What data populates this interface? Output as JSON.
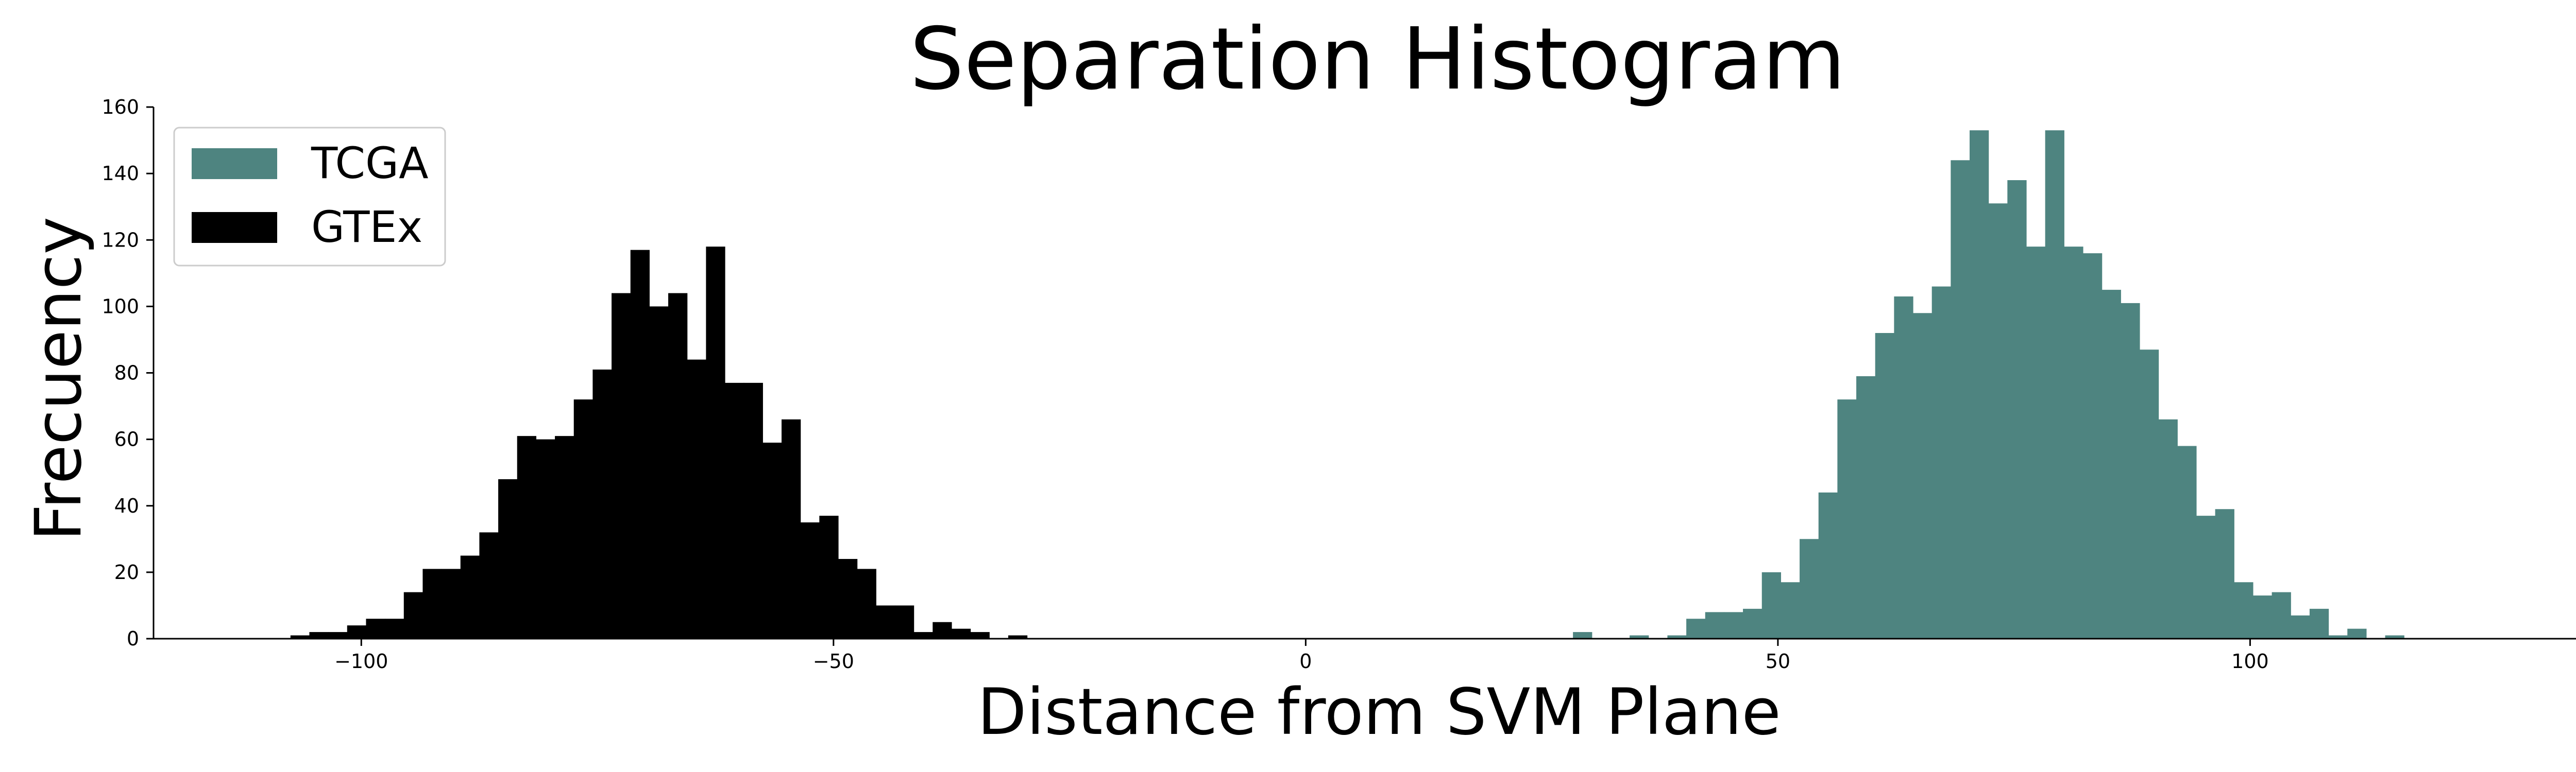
{
  "chart_data": {
    "type": "bar",
    "title": "Separation Histogram",
    "xlabel": "Distance from SVM Plane",
    "ylabel": "Frecuency",
    "xlim": [
      -122,
      138
    ],
    "ylim": [
      0,
      160
    ],
    "xticks": [
      -100,
      -50,
      0,
      50,
      100
    ],
    "xtick_labels": [
      "−100",
      "−50",
      "0",
      "50",
      "100"
    ],
    "yticks": [
      0,
      20,
      40,
      60,
      80,
      100,
      120,
      140,
      160
    ],
    "ytick_labels": [
      "0",
      "20",
      "40",
      "60",
      "80",
      "100",
      "120",
      "140",
      "160"
    ],
    "grid": false,
    "legend_position": "top-left",
    "series": [
      {
        "name": "TCGA",
        "color": "#4e8480",
        "bin_start": 28.3,
        "bin_width": 2.0,
        "values": [
          2,
          0,
          0,
          1,
          0,
          1,
          6,
          8,
          8,
          9,
          20,
          17,
          30,
          44,
          72,
          79,
          92,
          103,
          98,
          106,
          144,
          153,
          131,
          138,
          118,
          153,
          118,
          116,
          105,
          101,
          87,
          66,
          58,
          37,
          39,
          17,
          13,
          14,
          7,
          9,
          1,
          3,
          0,
          1
        ]
      },
      {
        "name": "GTEx",
        "color": "#000000",
        "bin_start": -107.5,
        "bin_width": 2.0,
        "values": [
          1,
          2,
          2,
          4,
          6,
          6,
          14,
          21,
          21,
          25,
          32,
          48,
          61,
          60,
          61,
          72,
          81,
          104,
          117,
          100,
          104,
          84,
          118,
          77,
          77,
          59,
          66,
          35,
          37,
          24,
          21,
          10,
          10,
          2,
          5,
          3,
          2,
          0,
          1
        ]
      }
    ]
  }
}
